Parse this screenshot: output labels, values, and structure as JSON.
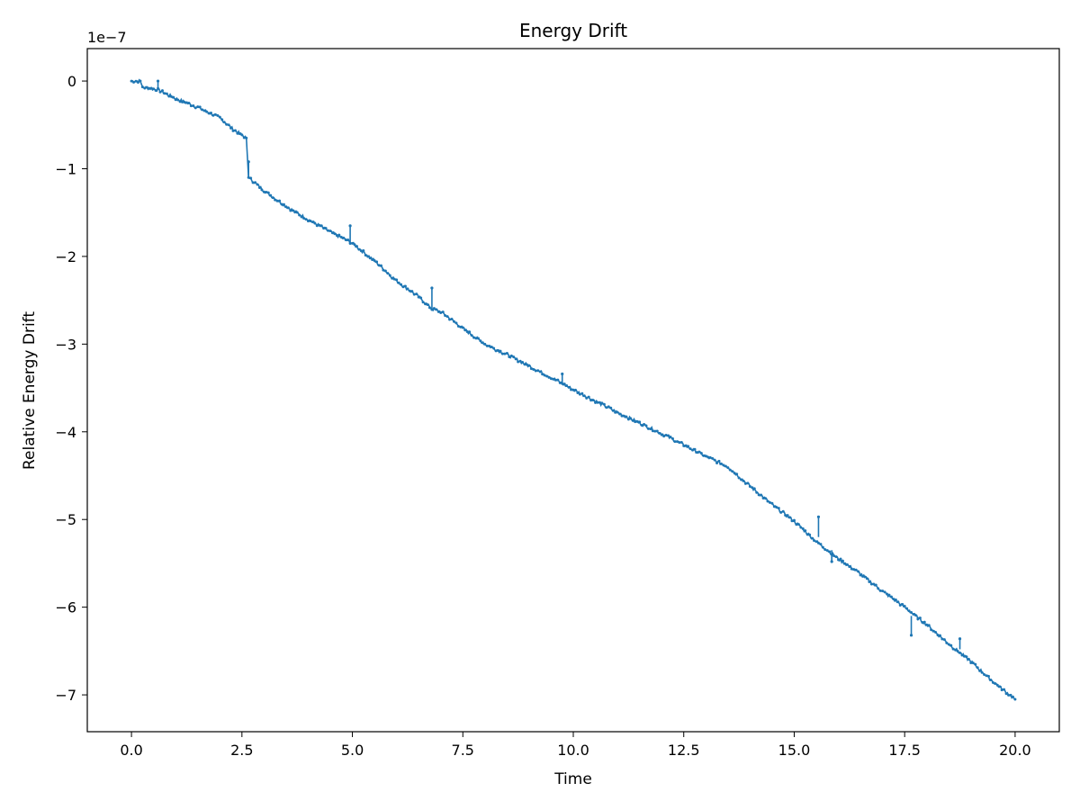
{
  "chart_data": {
    "type": "line",
    "title": "Energy Drift",
    "xlabel": "Time",
    "ylabel": "Relative Energy Drift",
    "y_offset_label": "1e−7",
    "xlim": [
      -1.0,
      21.0
    ],
    "ylim": [
      -7.42,
      0.37
    ],
    "x_ticks": [
      0.0,
      2.5,
      5.0,
      7.5,
      10.0,
      12.5,
      15.0,
      17.5,
      20.0
    ],
    "x_tick_labels": [
      "0.0",
      "2.5",
      "5.0",
      "7.5",
      "10.0",
      "12.5",
      "15.0",
      "17.5",
      "20.0"
    ],
    "y_ticks": [
      0,
      -1,
      -2,
      -3,
      -4,
      -5,
      -6,
      -7
    ],
    "y_tick_labels": [
      "0",
      "−1",
      "−2",
      "−3",
      "−4",
      "−5",
      "−6",
      "−7"
    ],
    "y_scale_note": "values in units of 1e-7",
    "grid": false,
    "legend": "none",
    "series": [
      {
        "color": "#1f77b4",
        "marker": "dot",
        "x": [
          0.0,
          0.2,
          0.25,
          0.6,
          1.0,
          1.5,
          2.0,
          2.3,
          2.6,
          2.65,
          2.7,
          3.0,
          3.5,
          4.0,
          4.5,
          5.0,
          5.5,
          6.0,
          6.5,
          6.8,
          7.0,
          7.5,
          8.0,
          8.5,
          9.0,
          9.5,
          10.0,
          10.5,
          11.0,
          11.5,
          12.0,
          12.5,
          13.0,
          13.5,
          14.0,
          14.5,
          15.0,
          15.5,
          16.0,
          16.5,
          17.0,
          17.5,
          18.0,
          18.5,
          19.0,
          19.5,
          20.0
        ],
        "y": [
          0.0,
          0.0,
          -0.07,
          -0.1,
          -0.2,
          -0.3,
          -0.42,
          -0.55,
          -0.65,
          -1.1,
          -1.12,
          -1.25,
          -1.43,
          -1.58,
          -1.72,
          -1.85,
          -2.05,
          -2.28,
          -2.46,
          -2.6,
          -2.63,
          -2.82,
          -3.0,
          -3.12,
          -3.25,
          -3.38,
          -3.52,
          -3.65,
          -3.78,
          -3.9,
          -4.02,
          -4.15,
          -4.28,
          -4.4,
          -4.62,
          -4.83,
          -5.02,
          -5.25,
          -5.45,
          -5.62,
          -5.82,
          -6.0,
          -6.2,
          -6.42,
          -6.62,
          -6.85,
          -7.05
        ]
      }
    ],
    "spikes": [
      {
        "x": 0.6,
        "base": -0.1,
        "peak": 0.0
      },
      {
        "x": 2.65,
        "base": -1.1,
        "peak": -0.92
      },
      {
        "x": 4.95,
        "base": -1.85,
        "peak": -1.65
      },
      {
        "x": 6.8,
        "base": -2.6,
        "peak": -2.36
      },
      {
        "x": 9.75,
        "base": -3.46,
        "peak": -3.34
      },
      {
        "x": 15.55,
        "base": -5.2,
        "peak": -4.97
      },
      {
        "x": 15.85,
        "base": -5.35,
        "peak": -5.48
      },
      {
        "x": 17.65,
        "base": -6.1,
        "peak": -6.32
      },
      {
        "x": 18.75,
        "base": -6.48,
        "peak": -6.36
      }
    ]
  }
}
